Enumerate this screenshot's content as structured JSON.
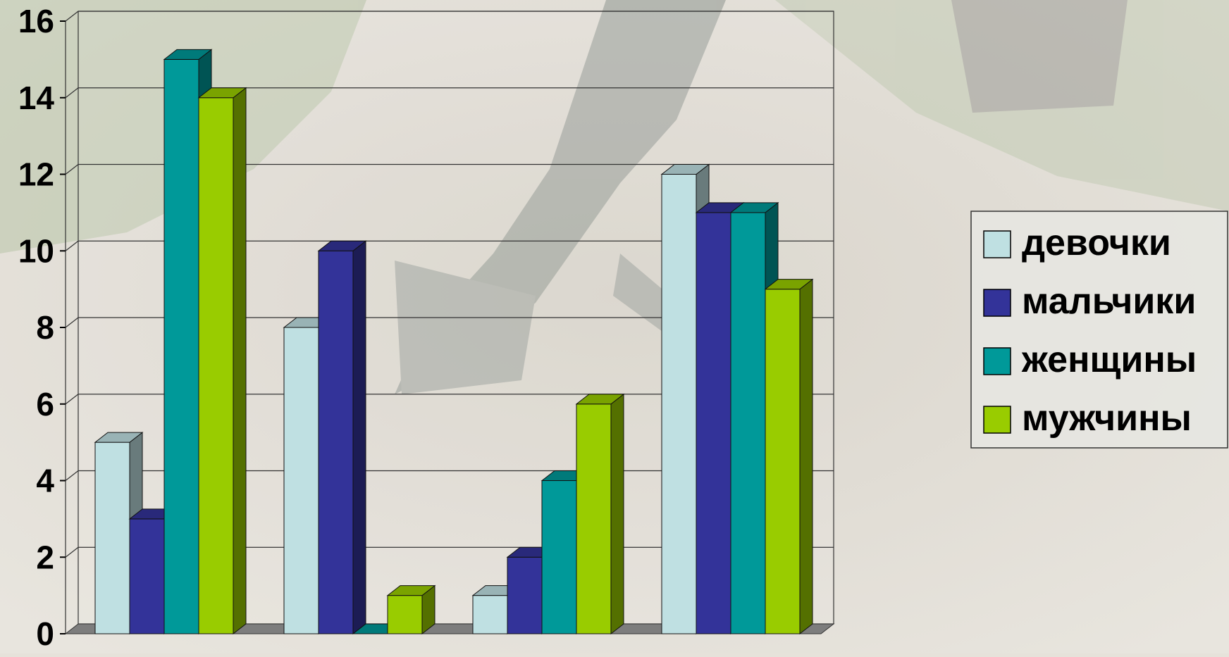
{
  "chart_data": {
    "type": "bar",
    "title": "",
    "xlabel": "",
    "ylabel": "",
    "categories": [
      "",
      "",
      "",
      ""
    ],
    "ylim": [
      0,
      16
    ],
    "yticks": [
      "0",
      "2",
      "4",
      "6",
      "8",
      "10",
      "12",
      "14",
      "16"
    ],
    "grid": true,
    "legend_position": "right",
    "series": [
      {
        "name": "девочки",
        "values": [
          5,
          8,
          1,
          12
        ],
        "color": "#bfe0e2"
      },
      {
        "name": "мальчики",
        "values": [
          3,
          10,
          2,
          11
        ],
        "color": "#333399"
      },
      {
        "name": "женщины",
        "values": [
          15,
          0,
          4,
          11
        ],
        "color": "#009999"
      },
      {
        "name": "мужчины",
        "values": [
          14,
          1,
          6,
          9
        ],
        "color": "#99cc00"
      }
    ]
  }
}
